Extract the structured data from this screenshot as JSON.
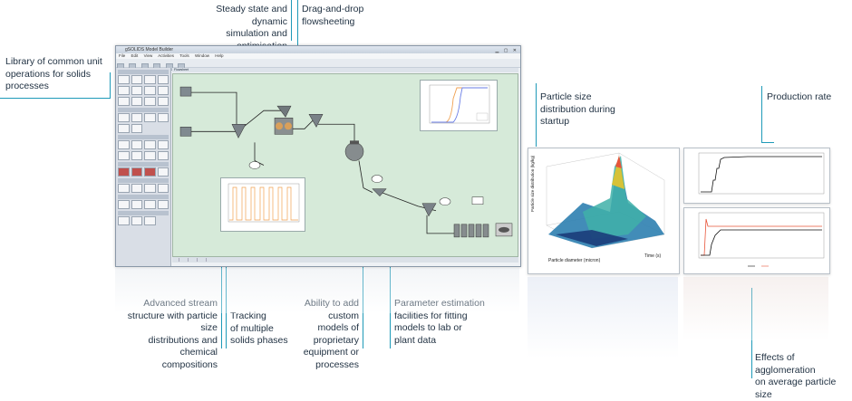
{
  "callouts": {
    "steady_state": [
      "Steady state and dynamic",
      "simulation and optimisation"
    ],
    "drag_drop": [
      "Drag-and-drop",
      "flowsheeting"
    ],
    "library": [
      "Library of common unit",
      "operations for solids",
      "processes"
    ],
    "advanced_stream": [
      "Advanced stream",
      "structure with particle size",
      "distributions and chemical",
      "compositions"
    ],
    "tracking": [
      "Tracking",
      "of multiple",
      "solids phases"
    ],
    "custom_models": [
      "Ability to add custom",
      "models of proprietary",
      "equipment or",
      "processes"
    ],
    "parameter_estimation": [
      "Parameter estimation",
      "facilities for fitting",
      "models to lab or",
      "plant data"
    ],
    "psd": [
      "Particle size",
      "distribution during",
      "startup"
    ],
    "production_rate": [
      "Production rate"
    ],
    "agglomeration": [
      "Effects of agglomeration",
      "on average particle size"
    ]
  },
  "app": {
    "title": "gSOLIDS Model Builder",
    "menu": [
      "File",
      "Edit",
      "View",
      "Activities",
      "Tools",
      "Window",
      "Help"
    ],
    "canvas_title": "Flowsheet"
  },
  "plot3d": {
    "zlabel": "Particle size distribution (kg/kg)",
    "xlabel": "Particle diameter (micron)",
    "ylabel": "Time (s)"
  },
  "colors": {
    "accent": "#1e9ab8",
    "canvas": "#d6ead9",
    "series_red": "#e8553a",
    "series_black": "#111111",
    "series_orange": "#f0a050",
    "series_blue": "#6a7ee6"
  }
}
